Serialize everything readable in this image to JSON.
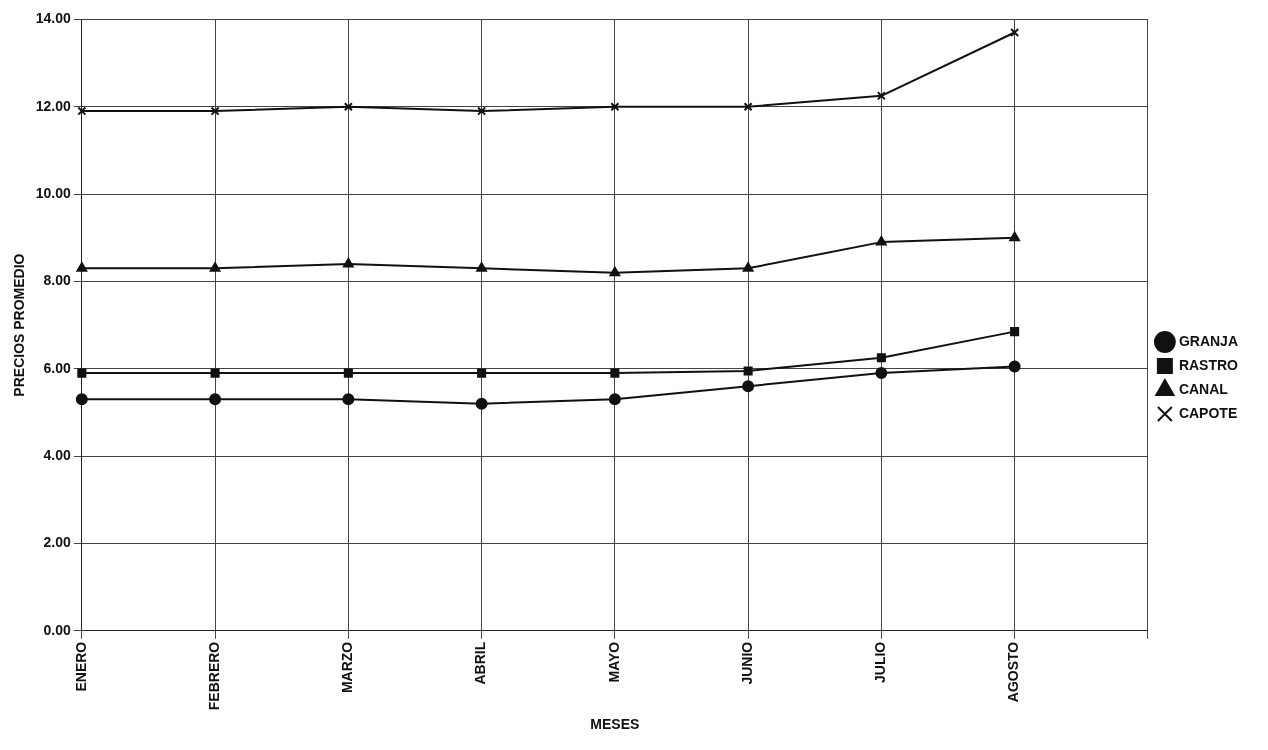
{
  "chart_data": {
    "type": "line",
    "xlabel": "MESES",
    "ylabel": "PRECIOS PROMEDIO",
    "categories": [
      "ENERO",
      "FEBRERO",
      "MARZO",
      "ABRIL",
      "MAYO",
      "JUNIO",
      "JULIO",
      "AGOSTO",
      null
    ],
    "series": [
      {
        "name": "GRANJA",
        "color": "#111111",
        "marker": "circle",
        "values": [
          5.3,
          5.3,
          5.3,
          5.2,
          5.3,
          5.6,
          5.9,
          6.05,
          null
        ]
      },
      {
        "name": "RASTRO",
        "color": "#111111",
        "marker": "square",
        "values": [
          5.9,
          5.9,
          5.9,
          5.9,
          5.9,
          5.95,
          6.25,
          6.85,
          null
        ]
      },
      {
        "name": "CANAL",
        "color": "#111111",
        "marker": "triangle",
        "values": [
          8.3,
          8.3,
          8.4,
          8.3,
          8.2,
          8.3,
          8.9,
          9.0,
          null
        ]
      },
      {
        "name": "CAPOTE",
        "color": "#111111",
        "marker": "cross",
        "values": [
          11.9,
          11.9,
          12.0,
          11.9,
          12.0,
          12.0,
          12.25,
          13.7,
          null
        ]
      }
    ],
    "ylim": [
      0,
      14
    ],
    "yticks": [
      {
        "value": 0,
        "label": "0.00"
      },
      {
        "value": 2,
        "label": "2.00"
      },
      {
        "value": 4,
        "label": "4.00"
      },
      {
        "value": 6,
        "label": "6.00"
      },
      {
        "value": 8,
        "label": "8.00"
      },
      {
        "value": 10,
        "label": "10.00"
      },
      {
        "value": 12,
        "label": "12.00"
      },
      {
        "value": 14,
        "label": "14.00"
      }
    ],
    "grid": true,
    "legend": "right",
    "line_style": "solid"
  }
}
